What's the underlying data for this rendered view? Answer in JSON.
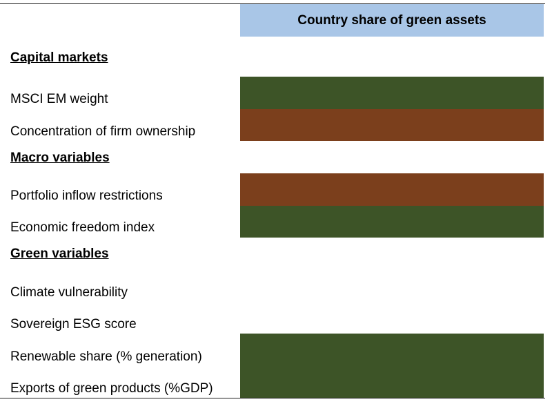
{
  "table": {
    "column_header": "Country share of green assets",
    "sections": [
      {
        "heading": "Capital markets",
        "rows": [
          {
            "label": "MSCI EM weight",
            "color": "#3d5427"
          },
          {
            "label": "Concentration of firm ownership",
            "color": "#7b3f1c"
          }
        ]
      },
      {
        "heading": "Macro variables",
        "rows": [
          {
            "label": "Portfolio inflow restrictions",
            "color": "#7b3f1c"
          },
          {
            "label": "Economic freedom index",
            "color": "#3d5427"
          }
        ]
      },
      {
        "heading": "Green variables",
        "rows": [
          {
            "label": "Climate vulnerability",
            "color": "#ffffff"
          },
          {
            "label": "Sovereign ESG score",
            "color": "#ffffff"
          },
          {
            "label": "Renewable share (% generation)",
            "color": "#3d5427"
          },
          {
            "label": "Exports of green products (%GDP)",
            "color": "#3d5427"
          }
        ]
      }
    ]
  }
}
